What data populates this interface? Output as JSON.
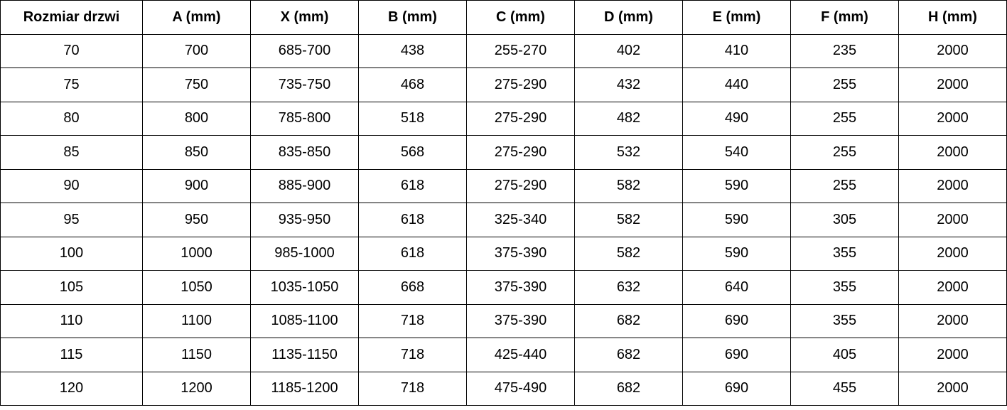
{
  "table": {
    "headers": [
      "Rozmiar drzwi",
      "A (mm)",
      "X (mm)",
      "B (mm)",
      "C (mm)",
      "D (mm)",
      "E (mm)",
      "F (mm)",
      "H (mm)"
    ],
    "rows": [
      [
        "70",
        "700",
        "685-700",
        "438",
        "255-270",
        "402",
        "410",
        "235",
        "2000"
      ],
      [
        "75",
        "750",
        "735-750",
        "468",
        "275-290",
        "432",
        "440",
        "255",
        "2000"
      ],
      [
        "80",
        "800",
        "785-800",
        "518",
        "275-290",
        "482",
        "490",
        "255",
        "2000"
      ],
      [
        "85",
        "850",
        "835-850",
        "568",
        "275-290",
        "532",
        "540",
        "255",
        "2000"
      ],
      [
        "90",
        "900",
        "885-900",
        "618",
        "275-290",
        "582",
        "590",
        "255",
        "2000"
      ],
      [
        "95",
        "950",
        "935-950",
        "618",
        "325-340",
        "582",
        "590",
        "305",
        "2000"
      ],
      [
        "100",
        "1000",
        "985-1000",
        "618",
        "375-390",
        "582",
        "590",
        "355",
        "2000"
      ],
      [
        "105",
        "1050",
        "1035-1050",
        "668",
        "375-390",
        "632",
        "640",
        "355",
        "2000"
      ],
      [
        "110",
        "1100",
        "1085-1100",
        "718",
        "375-390",
        "682",
        "690",
        "355",
        "2000"
      ],
      [
        "115",
        "1150",
        "1135-1150",
        "718",
        "425-440",
        "682",
        "690",
        "405",
        "2000"
      ],
      [
        "120",
        "1200",
        "1185-1200",
        "718",
        "475-490",
        "682",
        "690",
        "455",
        "2000"
      ]
    ]
  }
}
